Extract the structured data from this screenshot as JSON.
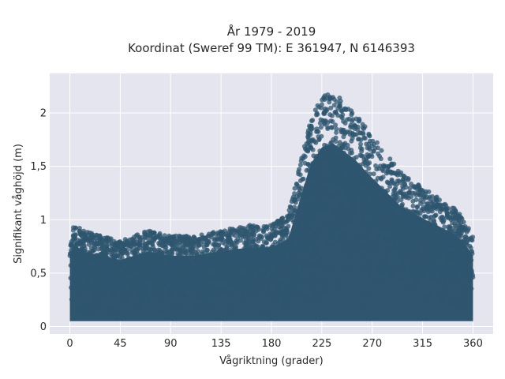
{
  "chart_data": {
    "type": "scatter",
    "title_line1": "År 1979 - 2019",
    "title_line2": "Koordinat (Sweref 99 TM): E 361947, N 6146393",
    "xlabel": "Vågriktning (grader)",
    "ylabel": "Signifikant våghöjd (m)",
    "xlim": [
      -18,
      378
    ],
    "ylim": [
      -0.07,
      2.37
    ],
    "x_ticks": [
      0,
      45,
      90,
      135,
      180,
      225,
      270,
      315,
      360
    ],
    "x_tick_labels": [
      "0",
      "45",
      "90",
      "135",
      "180",
      "225",
      "270",
      "315",
      "360"
    ],
    "y_ticks": [
      0,
      0.5,
      1,
      1.5,
      2
    ],
    "y_tick_labels": [
      "0",
      "0,5",
      "1",
      "1,5",
      "2"
    ],
    "grid": true,
    "marker_color": "#2f556f",
    "plot_background": "#e5e5ef",
    "upper_envelope": [
      {
        "x": 0,
        "y": 0.85
      },
      {
        "x": 5,
        "y": 1.0
      },
      {
        "x": 10,
        "y": 0.9
      },
      {
        "x": 30,
        "y": 0.85
      },
      {
        "x": 45,
        "y": 0.8
      },
      {
        "x": 70,
        "y": 0.9
      },
      {
        "x": 90,
        "y": 0.85
      },
      {
        "x": 110,
        "y": 0.85
      },
      {
        "x": 135,
        "y": 0.9
      },
      {
        "x": 160,
        "y": 0.95
      },
      {
        "x": 180,
        "y": 0.95
      },
      {
        "x": 195,
        "y": 1.05
      },
      {
        "x": 205,
        "y": 1.5
      },
      {
        "x": 215,
        "y": 1.95
      },
      {
        "x": 225,
        "y": 2.15
      },
      {
        "x": 235,
        "y": 2.2
      },
      {
        "x": 245,
        "y": 2.1
      },
      {
        "x": 255,
        "y": 2.0
      },
      {
        "x": 265,
        "y": 1.85
      },
      {
        "x": 280,
        "y": 1.65
      },
      {
        "x": 295,
        "y": 1.45
      },
      {
        "x": 315,
        "y": 1.3
      },
      {
        "x": 330,
        "y": 1.2
      },
      {
        "x": 345,
        "y": 1.1
      },
      {
        "x": 355,
        "y": 0.95
      },
      {
        "x": 360,
        "y": 0.85
      }
    ],
    "lower_bound": 0.05
  }
}
